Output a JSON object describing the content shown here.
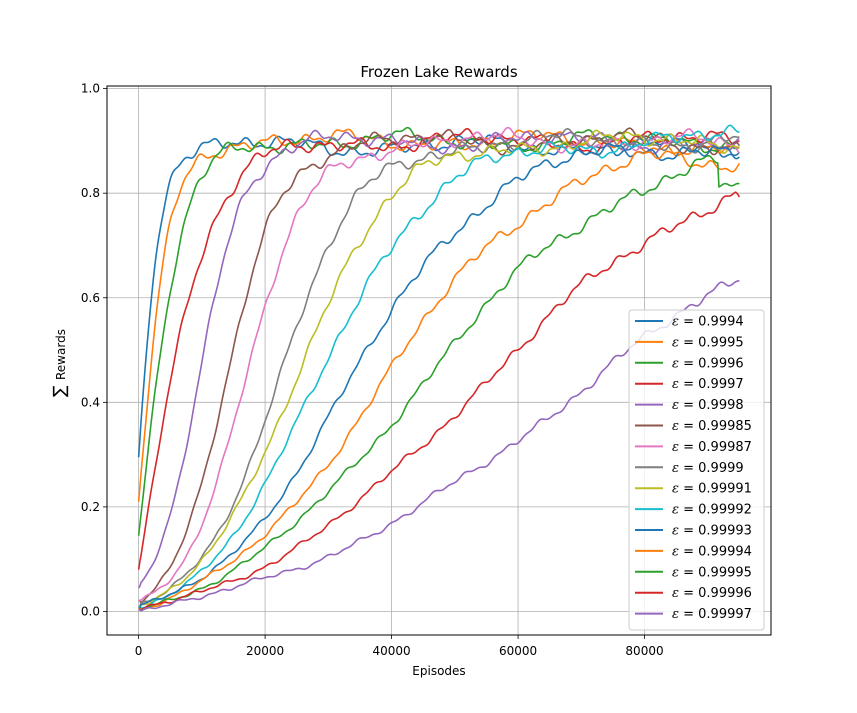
{
  "chart_data": {
    "type": "line",
    "title": "Frozen Lake Rewards",
    "xlabel": "Episodes",
    "ylabel_symbol": "∑",
    "ylabel": "Rewards",
    "xlim": [
      -5000,
      100000
    ],
    "ylim": [
      -0.045,
      1.005
    ],
    "x_ticks": [
      0,
      20000,
      40000,
      60000,
      80000
    ],
    "x_tick_labels": [
      "0",
      "20000",
      "40000",
      "60000",
      "80000"
    ],
    "y_ticks": [
      0.0,
      0.2,
      0.4,
      0.6,
      0.8,
      1.0
    ],
    "y_tick_labels": [
      "0.0",
      "0.2",
      "0.4",
      "0.6",
      "0.8",
      "1.0"
    ],
    "grid": true,
    "legend_position": "lower-right",
    "legend_symbol": "ε",
    "x_range": [
      0,
      95000
    ],
    "series": [
      {
        "name": "= 0.9994",
        "color": "#1f77b4",
        "start": 0.295,
        "plateau": 0.89,
        "k": 0.00059,
        "x0": 0,
        "end": 0.88
      },
      {
        "name": "= 0.9995",
        "color": "#ff7f0e",
        "start": 0.21,
        "plateau": 0.9,
        "k": 0.0004,
        "x0": 0,
        "end": 0.87
      },
      {
        "name": "= 0.9996",
        "color": "#2ca02c",
        "start": 0.145,
        "plateau": 0.9,
        "k": 0.00029,
        "x0": 0,
        "end": 0.9
      },
      {
        "name": "= 0.9997",
        "color": "#d62728",
        "start": 0.08,
        "plateau": 0.9,
        "k": 0.00019,
        "x0": 0,
        "end": 0.9
      },
      {
        "name": "= 0.9998",
        "color": "#9467bd",
        "start": 0.045,
        "plateau": 0.9,
        "k": 0.00029,
        "x0": 9500,
        "end": 0.89
      },
      {
        "name": "= 0.99985",
        "color": "#8c564b",
        "start": 0.02,
        "plateau": 0.9,
        "k": 0.00024,
        "x0": 14000,
        "end": 0.89
      },
      {
        "name": "= 0.99987",
        "color": "#e377c2",
        "start": 0.02,
        "plateau": 0.9,
        "k": 0.0002,
        "x0": 17000,
        "end": 0.89
      },
      {
        "name": "= 0.9999",
        "color": "#7f7f7f",
        "start": 0.01,
        "plateau": 0.9,
        "k": 0.000155,
        "x0": 22000,
        "end": 0.9
      },
      {
        "name": "= 0.99991",
        "color": "#bcbd22",
        "start": 0.01,
        "plateau": 0.9,
        "k": 0.00013,
        "x0": 24500,
        "end": 0.9
      },
      {
        "name": "= 0.99992",
        "color": "#17becf",
        "start": 0.008,
        "plateau": 0.9,
        "k": 0.00011,
        "x0": 28000,
        "end": 0.91
      },
      {
        "name": "= 0.99993",
        "color": "#1f77b4",
        "start": 0.006,
        "plateau": 0.9,
        "k": 9e-05,
        "x0": 33000,
        "end": 0.88
      },
      {
        "name": "= 0.99994",
        "color": "#ff7f0e",
        "start": 0.005,
        "plateau": 0.9,
        "k": 7.6e-05,
        "x0": 38000,
        "end": 0.87
      },
      {
        "name": "= 0.99995",
        "color": "#2ca02c",
        "start": 0.004,
        "plateau": 0.9,
        "k": 6.3e-05,
        "x0": 44000,
        "end": 0.84
      },
      {
        "name": "= 0.99996",
        "color": "#d62728",
        "start": 0.003,
        "plateau": 0.9,
        "k": 5.2e-05,
        "x0": 53500,
        "end": 0.79
      },
      {
        "name": "= 0.99997",
        "color": "#9467bd",
        "start": 0.003,
        "plateau": 0.9,
        "k": 4e-05,
        "x0": 70000,
        "end": 0.66
      }
    ]
  }
}
